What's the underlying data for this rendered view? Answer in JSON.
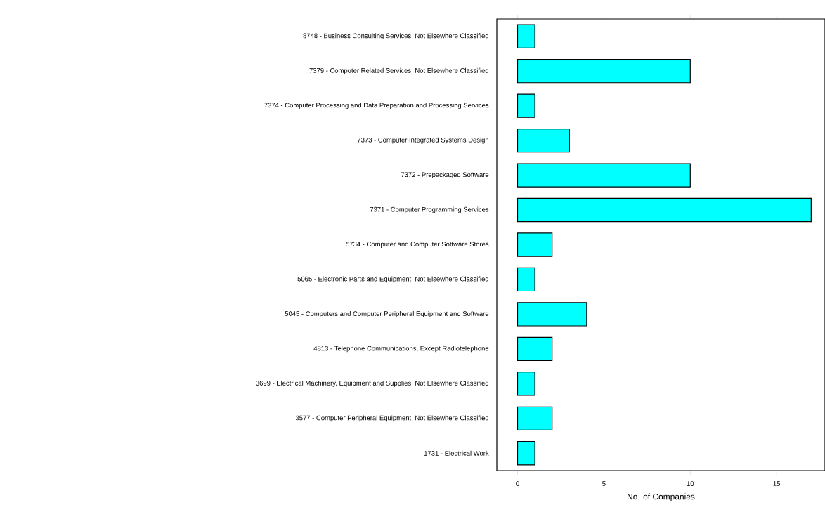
{
  "chart_data": {
    "type": "bar",
    "orientation": "horizontal",
    "xlabel": "No. of Companies",
    "categories": [
      "8748 - Business Consulting Services, Not Elsewhere Classified",
      "7379 - Computer Related Services, Not Elsewhere Classified",
      "7374 - Computer Processing and Data Preparation and Processing Services",
      "7373 - Computer Integrated Systems Design",
      "7372 - Prepackaged Software",
      "7371 - Computer Programming Services",
      "5734 - Computer and Computer Software Stores",
      "5065 - Electronic Parts and Equipment, Not Elsewhere Classified",
      "5045 - Computers and Computer Peripheral Equipment and Software",
      "4813 - Telephone Communications, Except Radiotelephone",
      "3699 - Electrical Machinery, Equipment and Supplies, Not Elsewhere Classified",
      "3577 - Computer Peripheral Equipment, Not Elsewhere Classified",
      "1731 - Electrical Work"
    ],
    "values": [
      1,
      10,
      1,
      3,
      10,
      17,
      2,
      1,
      4,
      2,
      1,
      2,
      1
    ],
    "color": "#00ffff",
    "xlim": [
      -1.2,
      17.8
    ],
    "xticks": [
      0,
      5,
      10,
      15
    ]
  }
}
